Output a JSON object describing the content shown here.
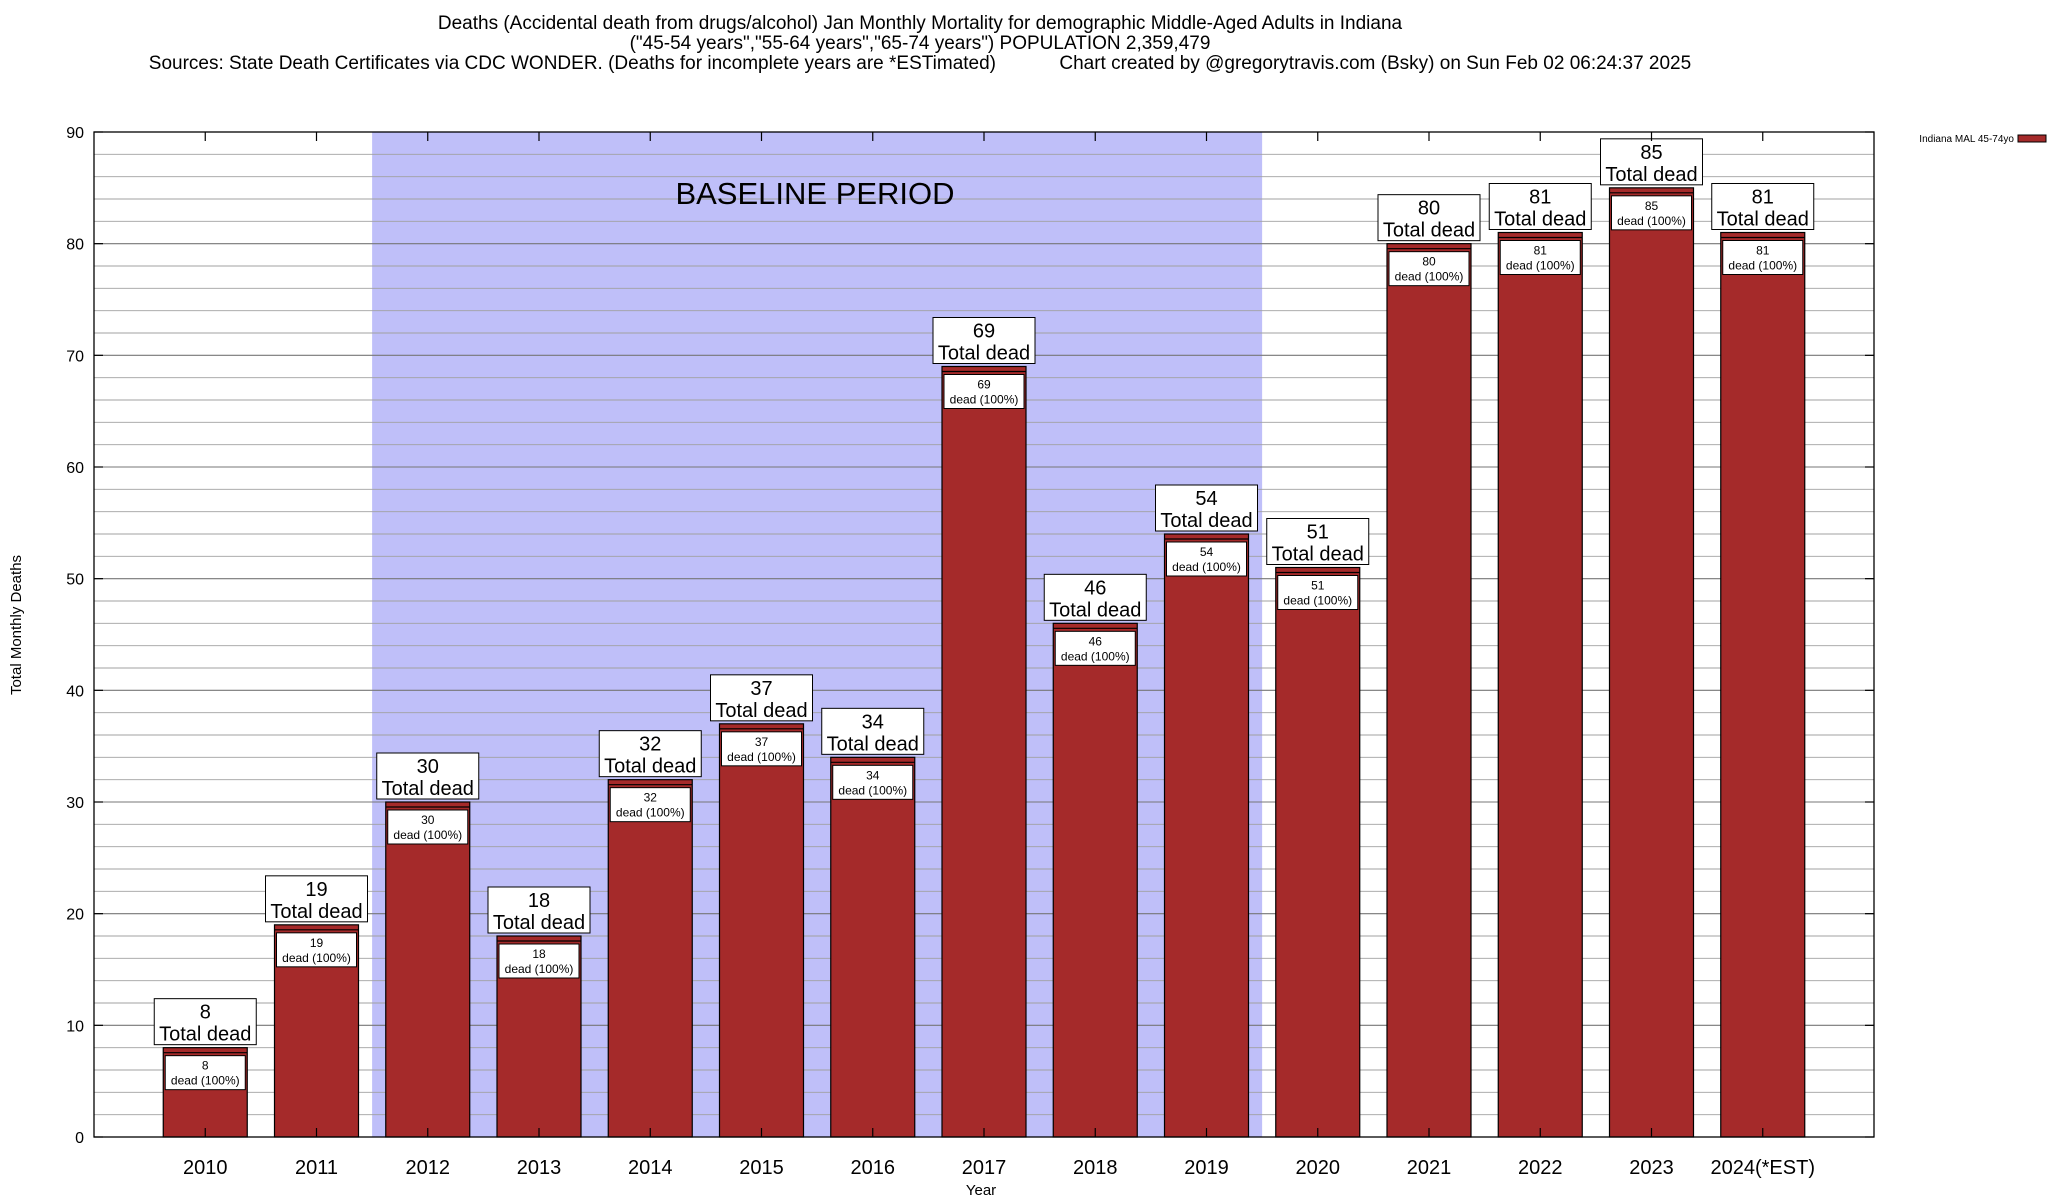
{
  "header": {
    "title_line1": "Deaths (Accidental death from drugs/alcohol) Jan Monthly Mortality for demographic Middle-Aged Adults in Indiana",
    "title_line2": "(\"45-54 years\",\"55-64 years\",\"65-74 years\") POPULATION 2,359,479",
    "sources": "Sources: State Death Certificates via CDC WONDER. (Deaths for incomplete years are *ESTimated)",
    "credit": "Chart created by @gregorytravis.com (Bsky) on Sun Feb 02 06:24:37 2025"
  },
  "chart_data": {
    "type": "bar",
    "xlabel": "Year",
    "ylabel": "Total Monthly Deaths",
    "ylim": [
      0,
      90
    ],
    "yticks": [
      0,
      10,
      20,
      30,
      40,
      50,
      60,
      70,
      80,
      90
    ],
    "minor_gridlines_every": 2,
    "grid": true,
    "categories": [
      "2010",
      "2011",
      "2012",
      "2013",
      "2014",
      "2015",
      "2016",
      "2017",
      "2018",
      "2019",
      "2020",
      "2021",
      "2022",
      "2023",
      "2024(*EST)"
    ],
    "series": [
      {
        "name": "Indiana MAL 45-74yo",
        "color": "#a52a2a",
        "values": [
          8,
          19,
          30,
          18,
          32,
          37,
          34,
          69,
          46,
          54,
          51,
          80,
          81,
          85,
          81
        ]
      }
    ],
    "bar_label_text": "Total dead",
    "inner_label_text": "dead (100%)",
    "shaded_region": {
      "label": "BASELINE PERIOD",
      "from_category": "2012",
      "to_category": "2019",
      "color": "#bfbff9"
    },
    "legend": {
      "position": "top-right",
      "entries": [
        "Indiana MAL 45-74yo"
      ]
    }
  }
}
